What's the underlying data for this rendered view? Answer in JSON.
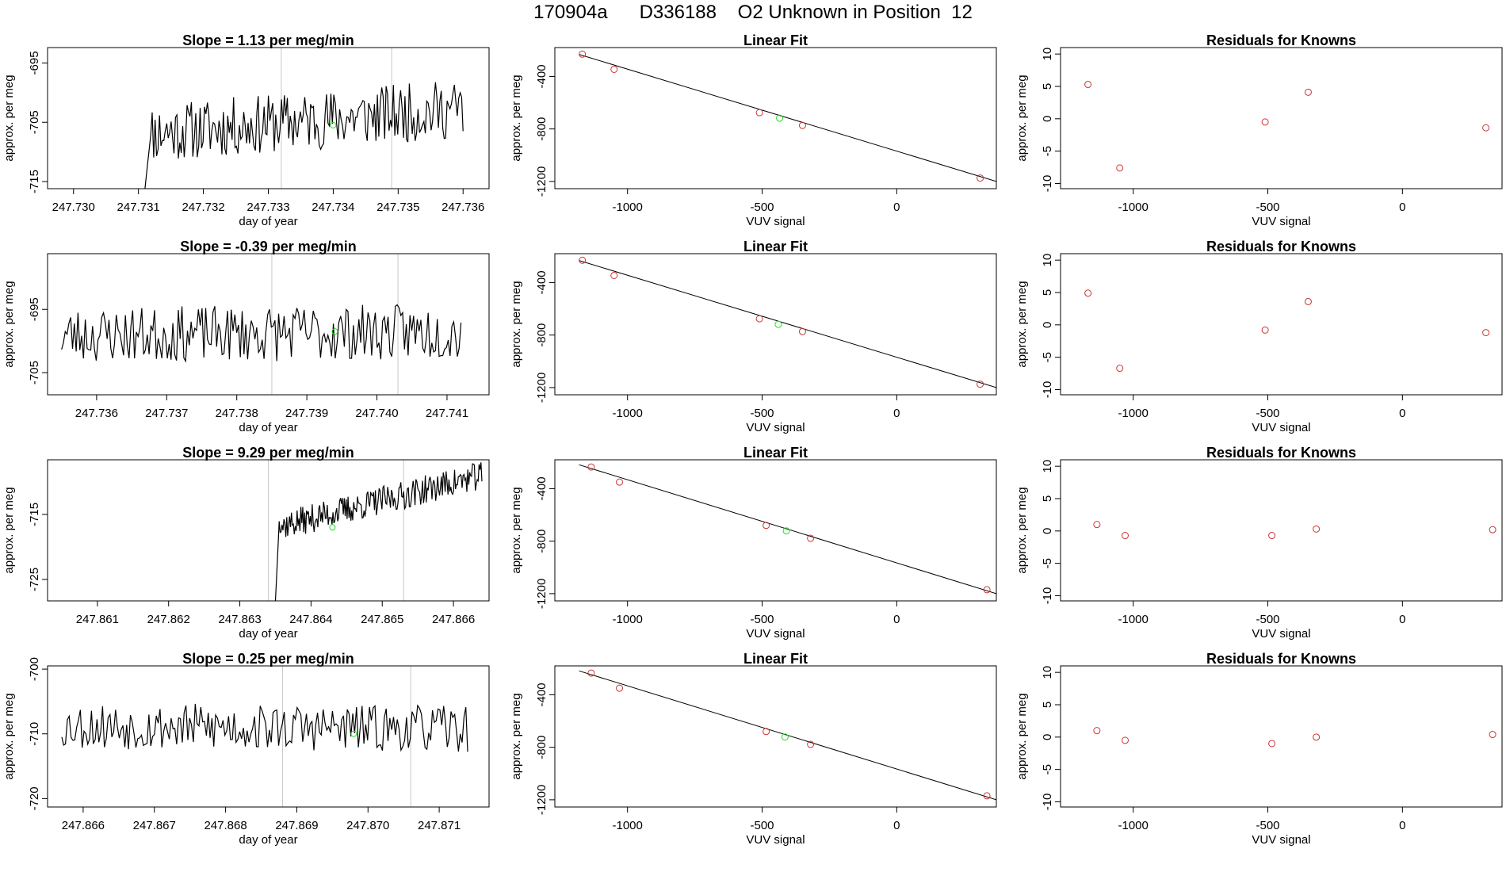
{
  "title": "170904a      D336188    O2 Unknown in Position  12",
  "colors": {
    "trace": "#000000",
    "known_point": "#cd3333",
    "unknown_point": "#22dd22",
    "vline": "#c8c8c8",
    "fit_line": "#000000"
  },
  "chart_data": [
    {
      "panel": "timeseries",
      "row": 1,
      "type": "line",
      "title": "Slope =  1.13  per meg/min",
      "xlabel": "day of year",
      "ylabel": "approx. per meg",
      "xlim": [
        247.7296,
        247.7364
      ],
      "ylim": [
        -716.2,
        -692.4
      ],
      "xticks": [
        247.73,
        247.731,
        247.732,
        247.733,
        247.734,
        247.735,
        247.736
      ],
      "xtick_labels": [
        "247.730",
        "247.731",
        "247.732",
        "247.733",
        "247.734",
        "247.735",
        "247.736"
      ],
      "yticks": [
        -715,
        -705,
        -695
      ],
      "ytick_labels": [
        "-715",
        "-705",
        "-695"
      ],
      "x_range": [
        247.7311,
        247.736
      ],
      "y_start": -716.2,
      "baseline": -704.8,
      "trend": 4.2,
      "noise": 5,
      "seed": 11,
      "vlines": [
        247.7332,
        247.7349
      ],
      "unknown_point": {
        "x": 247.734,
        "y": -705.5
      }
    },
    {
      "panel": "linear_fit",
      "row": 1,
      "type": "scatter",
      "title": "Linear Fit",
      "xlabel": "VUV signal",
      "ylabel": "approx. per meg",
      "xlim": [
        -1270,
        370
      ],
      "ylim": [
        -1255,
        -180
      ],
      "xticks": [
        -1000,
        -500,
        0
      ],
      "xtick_labels": [
        "-1000",
        "-500",
        "0"
      ],
      "yticks": [
        -1200,
        -800,
        -400
      ],
      "ytick_labels": [
        "-1200",
        "-800",
        "-400"
      ],
      "knowns": [
        {
          "x": -1168,
          "y": -230
        },
        {
          "x": -1050,
          "y": -346
        },
        {
          "x": -510,
          "y": -676
        },
        {
          "x": -350,
          "y": -773
        },
        {
          "x": 310,
          "y": -1174
        }
      ],
      "unknown": {
        "x": -435,
        "y": -718
      },
      "fit_line": {
        "x1": -1180,
        "y1": -232,
        "x2": 370,
        "y2": -1200
      }
    },
    {
      "panel": "residuals",
      "row": 1,
      "type": "scatter",
      "title": "Residuals for Knowns",
      "xlabel": "VUV signal",
      "ylabel": "approx. per meg",
      "xlim": [
        -1270,
        370
      ],
      "ylim": [
        -10.8,
        11
      ],
      "xticks": [
        -1000,
        -500,
        0
      ],
      "xtick_labels": [
        "-1000",
        "-500",
        "0"
      ],
      "yticks": [
        -10,
        -5,
        0,
        5,
        10
      ],
      "ytick_labels": [
        "-10",
        "-5",
        "0",
        "5",
        "10"
      ],
      "points": [
        {
          "x": -1168,
          "y": 5.3
        },
        {
          "x": -1050,
          "y": -7.6
        },
        {
          "x": -510,
          "y": -0.5
        },
        {
          "x": -350,
          "y": 4.1
        },
        {
          "x": 310,
          "y": -1.4
        }
      ]
    },
    {
      "panel": "timeseries",
      "row": 2,
      "type": "line",
      "title": "Slope =  -0.39  per meg/min",
      "xlabel": "day of year",
      "ylabel": "approx. per meg",
      "xlim": [
        247.7353,
        247.7416
      ],
      "ylim": [
        -708.5,
        -686.2
      ],
      "xticks": [
        247.736,
        247.737,
        247.738,
        247.739,
        247.74,
        247.741
      ],
      "xtick_labels": [
        "247.736",
        "247.737",
        "247.738",
        "247.739",
        "247.740",
        "247.741"
      ],
      "yticks": [
        -705,
        -695
      ],
      "ytick_labels": [
        "-705",
        "-695"
      ],
      "x_range": [
        247.7355,
        247.7412
      ],
      "y_start": null,
      "baseline": -698.8,
      "trend": 0.6,
      "noise": 4.4,
      "seed": 23,
      "vlines": [
        247.7385,
        247.7403
      ],
      "unknown_point": {
        "x": 247.7394,
        "y": -698.5
      }
    },
    {
      "panel": "linear_fit",
      "row": 2,
      "type": "scatter",
      "title": "Linear Fit",
      "xlabel": "VUV signal",
      "ylabel": "approx. per meg",
      "xlim": [
        -1270,
        370
      ],
      "ylim": [
        -1255,
        -180
      ],
      "xticks": [
        -1000,
        -500,
        0
      ],
      "xtick_labels": [
        "-1000",
        "-500",
        "0"
      ],
      "yticks": [
        -1200,
        -800,
        -400
      ],
      "ytick_labels": [
        "-1200",
        "-800",
        "-400"
      ],
      "knowns": [
        {
          "x": -1168,
          "y": -230
        },
        {
          "x": -1050,
          "y": -346
        },
        {
          "x": -510,
          "y": -676
        },
        {
          "x": -350,
          "y": -773
        },
        {
          "x": 310,
          "y": -1174
        }
      ],
      "unknown": {
        "x": -440,
        "y": -718
      },
      "fit_line": {
        "x1": -1180,
        "y1": -232,
        "x2": 370,
        "y2": -1200
      }
    },
    {
      "panel": "residuals",
      "row": 2,
      "type": "scatter",
      "title": "Residuals for Knowns",
      "xlabel": "VUV signal",
      "ylabel": "approx. per meg",
      "xlim": [
        -1270,
        370
      ],
      "ylim": [
        -10.8,
        11
      ],
      "xticks": [
        -1000,
        -500,
        0
      ],
      "xtick_labels": [
        "-1000",
        "-500",
        "0"
      ],
      "yticks": [
        -10,
        -5,
        0,
        5,
        10
      ],
      "ytick_labels": [
        "-10",
        "-5",
        "0",
        "5",
        "10"
      ],
      "points": [
        {
          "x": -1168,
          "y": 4.9
        },
        {
          "x": -1050,
          "y": -6.7
        },
        {
          "x": -510,
          "y": -0.8
        },
        {
          "x": -350,
          "y": 3.6
        },
        {
          "x": 310,
          "y": -1.2
        }
      ]
    },
    {
      "panel": "timeseries",
      "row": 3,
      "type": "line",
      "title": "Slope =  9.29  per meg/min",
      "xlabel": "day of year",
      "ylabel": "approx. per meg",
      "xlim": [
        247.8603,
        247.8665
      ],
      "ylim": [
        -728.3,
        -706.6
      ],
      "xticks": [
        247.861,
        247.862,
        247.863,
        247.864,
        247.865,
        247.866
      ],
      "xtick_labels": [
        "247.861",
        "247.862",
        "247.863",
        "247.864",
        "247.865",
        "247.866"
      ],
      "yticks": [
        -725,
        -715
      ],
      "ytick_labels": [
        "-725",
        "-715"
      ],
      "x_range": [
        247.8635,
        247.8664
      ],
      "y_start": -728.3,
      "baseline": -713,
      "trend": 8,
      "noise": 2.2,
      "seed": 37,
      "vlines": [
        247.8634,
        247.8653
      ],
      "unknown_point": {
        "x": 247.8643,
        "y": -717
      }
    },
    {
      "panel": "linear_fit",
      "row": 3,
      "type": "scatter",
      "title": "Linear Fit",
      "xlabel": "VUV signal",
      "ylabel": "approx. per meg",
      "xlim": [
        -1270,
        370
      ],
      "ylim": [
        -1255,
        -180
      ],
      "xticks": [
        -1000,
        -500,
        0
      ],
      "xtick_labels": [
        "-1000",
        "-500",
        "0"
      ],
      "yticks": [
        -1200,
        -800,
        -400
      ],
      "ytick_labels": [
        "-1200",
        "-800",
        "-400"
      ],
      "knowns": [
        {
          "x": -1135,
          "y": -235
        },
        {
          "x": -1030,
          "y": -350
        },
        {
          "x": -485,
          "y": -680
        },
        {
          "x": -320,
          "y": -778
        },
        {
          "x": 335,
          "y": -1170
        }
      ],
      "unknown": {
        "x": -410,
        "y": -722
      },
      "fit_line": {
        "x1": -1180,
        "y1": -218,
        "x2": 370,
        "y2": -1200
      }
    },
    {
      "panel": "residuals",
      "row": 3,
      "type": "scatter",
      "title": "Residuals for Knowns",
      "xlabel": "VUV signal",
      "ylabel": "approx. per meg",
      "xlim": [
        -1270,
        370
      ],
      "ylim": [
        -10.8,
        11
      ],
      "xticks": [
        -1000,
        -500,
        0
      ],
      "xtick_labels": [
        "-1000",
        "-500",
        "0"
      ],
      "yticks": [
        -10,
        -5,
        0,
        5,
        10
      ],
      "ytick_labels": [
        "-10",
        "-5",
        "0",
        "5",
        "10"
      ],
      "points": [
        {
          "x": -1135,
          "y": 1
        },
        {
          "x": -1030,
          "y": -0.7
        },
        {
          "x": -485,
          "y": -0.7
        },
        {
          "x": -320,
          "y": 0.3
        },
        {
          "x": 335,
          "y": 0.2
        }
      ]
    },
    {
      "panel": "timeseries",
      "row": 4,
      "type": "line",
      "title": "Slope =  0.25  per meg/min",
      "xlabel": "day of year",
      "ylabel": "approx. per meg",
      "xlim": [
        247.8655,
        247.8717
      ],
      "ylim": [
        -721.3,
        -699.5
      ],
      "xticks": [
        247.866,
        247.867,
        247.868,
        247.869,
        247.87,
        247.871
      ],
      "xtick_labels": [
        "247.866",
        "247.867",
        "247.868",
        "247.869",
        "247.870",
        "247.871"
      ],
      "yticks": [
        -720,
        -710,
        -700
      ],
      "ytick_labels": [
        "-720",
        "-710",
        "-700"
      ],
      "x_range": [
        247.8657,
        247.8714
      ],
      "y_start": null,
      "baseline": -709,
      "trend": -0.5,
      "noise": 3.6,
      "seed": 53,
      "vlines": [
        247.8688,
        247.8706
      ],
      "unknown_point": {
        "x": 247.8698,
        "y": -710
      }
    },
    {
      "panel": "linear_fit",
      "row": 4,
      "type": "scatter",
      "title": "Linear Fit",
      "xlabel": "VUV signal",
      "ylabel": "approx. per meg",
      "xlim": [
        -1270,
        370
      ],
      "ylim": [
        -1255,
        -180
      ],
      "xticks": [
        -1000,
        -500,
        0
      ],
      "xtick_labels": [
        "-1000",
        "-500",
        "0"
      ],
      "yticks": [
        -1200,
        -800,
        -400
      ],
      "ytick_labels": [
        "-1200",
        "-800",
        "-400"
      ],
      "knowns": [
        {
          "x": -1135,
          "y": -235
        },
        {
          "x": -1030,
          "y": -350
        },
        {
          "x": -485,
          "y": -680
        },
        {
          "x": -320,
          "y": -778
        },
        {
          "x": 335,
          "y": -1170
        }
      ],
      "unknown": {
        "x": -415,
        "y": -722
      },
      "fit_line": {
        "x1": -1180,
        "y1": -218,
        "x2": 370,
        "y2": -1200
      }
    },
    {
      "panel": "residuals",
      "row": 4,
      "type": "scatter",
      "title": "Residuals for Knowns",
      "xlabel": "VUV signal",
      "ylabel": "approx. per meg",
      "xlim": [
        -1270,
        370
      ],
      "ylim": [
        -10.8,
        11
      ],
      "xticks": [
        -1000,
        -500,
        0
      ],
      "xtick_labels": [
        "-1000",
        "-500",
        "0"
      ],
      "yticks": [
        -10,
        -5,
        0,
        5,
        10
      ],
      "ytick_labels": [
        "-10",
        "-5",
        "0",
        "5",
        "10"
      ],
      "points": [
        {
          "x": -1135,
          "y": 1
        },
        {
          "x": -1030,
          "y": -0.5
        },
        {
          "x": -485,
          "y": -1
        },
        {
          "x": -320,
          "y": 0
        },
        {
          "x": 335,
          "y": 0.4
        }
      ]
    }
  ]
}
